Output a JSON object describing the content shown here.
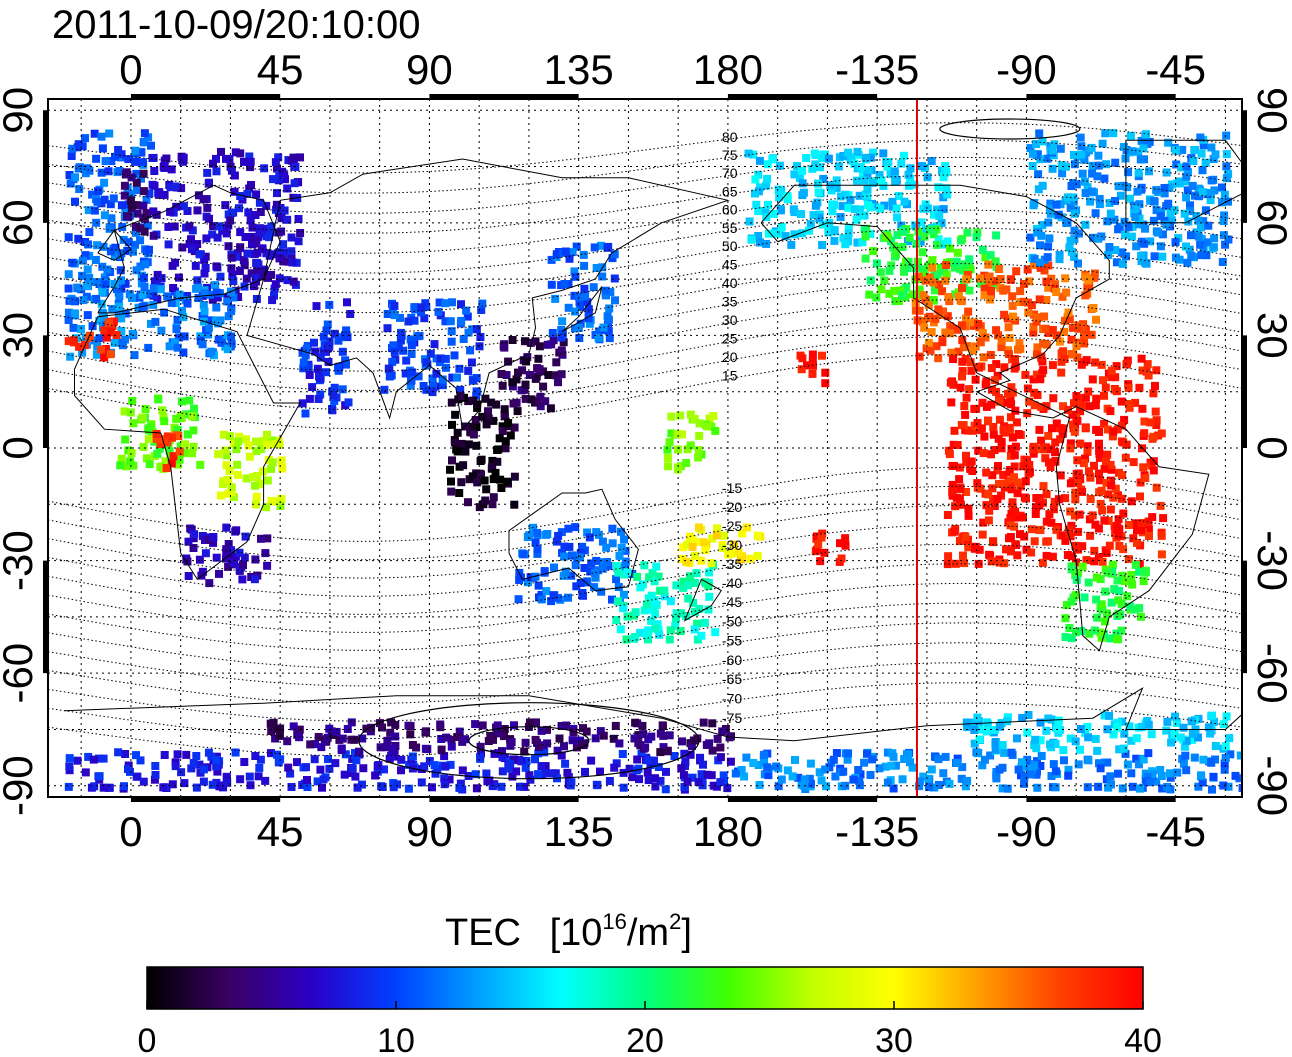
{
  "title": "2011-10-09/20:10:00",
  "x_axis": {
    "ticks": [
      {
        "lon": 0,
        "label": "0"
      },
      {
        "lon": 45,
        "label": "45"
      },
      {
        "lon": 90,
        "label": "90"
      },
      {
        "lon": 135,
        "label": "135"
      },
      {
        "lon": 180,
        "label": "180"
      },
      {
        "lon": 225,
        "label": "-135"
      },
      {
        "lon": 270,
        "label": "-90"
      },
      {
        "lon": 315,
        "label": "-45"
      }
    ],
    "lon_range": [
      -25,
      335
    ]
  },
  "y_axis": {
    "ticks": [
      {
        "lat": 90,
        "label": "90"
      },
      {
        "lat": 60,
        "label": "60"
      },
      {
        "lat": 30,
        "label": "30"
      },
      {
        "lat": 0,
        "label": "0"
      },
      {
        "lat": -30,
        "label": "-30"
      },
      {
        "lat": -60,
        "label": "-60"
      },
      {
        "lat": -90,
        "label": "-90"
      }
    ],
    "lat_range": [
      -93,
      93
    ]
  },
  "contour_labels": [
    "80",
    "75",
    "70",
    "65",
    "60",
    "55",
    "50",
    "45",
    "40",
    "35",
    "30",
    "25",
    "20",
    "15",
    "-15",
    "-20",
    "-25",
    "-30",
    "-35",
    "-40",
    "-45",
    "-50",
    "-55",
    "-60",
    "-65",
    "-70",
    "-75"
  ],
  "terminator_lon": 237,
  "colorbar": {
    "title": "TEC",
    "unit_prefix": "[10",
    "unit_exp": "16",
    "unit_mid": "/m",
    "unit_exp2": "2",
    "unit_suffix": "]",
    "ticks": [
      {
        "value": 0,
        "label": "0"
      },
      {
        "value": 10,
        "label": "10"
      },
      {
        "value": 20,
        "label": "20"
      },
      {
        "value": 30,
        "label": "30"
      },
      {
        "value": 40,
        "label": "40"
      }
    ],
    "range": [
      0,
      40
    ],
    "stops": [
      "#000000",
      "#3a0063",
      "#2a00c8",
      "#0040ff",
      "#00a0ff",
      "#00ffff",
      "#00ff80",
      "#40ff00",
      "#c0ff00",
      "#ffff00",
      "#ffa000",
      "#ff4000",
      "#ff0000"
    ]
  },
  "tec_regions": [
    {
      "lon": [
        -20,
        5
      ],
      "lat": [
        40,
        85
      ],
      "tec": 11
    },
    {
      "lon": 0,
      "lat": [
        55,
        75
      ],
      "tec": 4
    },
    {
      "lon": [
        5,
        50
      ],
      "lat": [
        40,
        80
      ],
      "tec": 7
    },
    {
      "lon": [
        -20,
        30
      ],
      "lat": [
        25,
        45
      ],
      "tec": 12
    },
    {
      "lon": [
        -20,
        -5
      ],
      "lat": [
        25,
        35
      ],
      "tec": 38
    },
    {
      "lon": [
        -5,
        20
      ],
      "lat": [
        -5,
        15
      ],
      "tec": 24
    },
    {
      "lon": [
        5,
        15
      ],
      "lat": [
        -5,
        5
      ],
      "tec": 38
    },
    {
      "lon": [
        25,
        45
      ],
      "lat": [
        -15,
        5
      ],
      "tec": 27
    },
    {
      "lon": [
        15,
        40
      ],
      "lat": [
        -35,
        -20
      ],
      "tec": 6
    },
    {
      "lon": [
        50,
        65
      ],
      "lat": [
        10,
        40
      ],
      "tec": 9
    },
    {
      "lon": [
        75,
        105
      ],
      "lat": [
        15,
        40
      ],
      "tec": 10
    },
    {
      "lon": [
        95,
        115
      ],
      "lat": [
        -15,
        15
      ],
      "tec": 1
    },
    {
      "lon": [
        110,
        130
      ],
      "lat": [
        10,
        30
      ],
      "tec": 3
    },
    {
      "lon": [
        125,
        145
      ],
      "lat": [
        30,
        55
      ],
      "tec": 11
    },
    {
      "lon": [
        115,
        150
      ],
      "lat": [
        -40,
        -20
      ],
      "tec": 11
    },
    {
      "lon": [
        145,
        175
      ],
      "lat": [
        -50,
        -30
      ],
      "tec": 18
    },
    {
      "lon": [
        160,
        175
      ],
      "lat": [
        -5,
        10
      ],
      "tec": 25
    },
    {
      "lon": [
        165,
        190
      ],
      "lat": [
        -30,
        -20
      ],
      "tec": 30
    },
    {
      "lon": [
        185,
        245
      ],
      "lat": [
        55,
        80
      ],
      "tec": 15
    },
    {
      "lon": [
        220,
        260
      ],
      "lat": [
        40,
        60
      ],
      "tec": 22
    },
    {
      "lon": [
        235,
        290
      ],
      "lat": [
        25,
        50
      ],
      "tec": 36
    },
    {
      "lon": [
        245,
        310
      ],
      "lat": [
        -30,
        25
      ],
      "tec": 39
    },
    {
      "lon": [
        280,
        305
      ],
      "lat": [
        -50,
        -30
      ],
      "tec": 22
    },
    {
      "lon": [
        270,
        330
      ],
      "lat": [
        50,
        85
      ],
      "tec": 13
    },
    {
      "lon": [
        200,
        210
      ],
      "lat": [
        18,
        26
      ],
      "tec": 39
    },
    {
      "lon": [
        205,
        215
      ],
      "lat": [
        -30,
        -20
      ],
      "tec": 39
    },
    {
      "lon": [
        -20,
        180
      ],
      "lat": [
        -90,
        -80
      ],
      "tec": 8
    },
    {
      "lon": [
        40,
        180
      ],
      "lat": [
        -80,
        -72
      ],
      "tec": 4
    },
    {
      "lon": [
        180,
        335
      ],
      "lat": [
        -90,
        -80
      ],
      "tec": 12
    },
    {
      "lon": [
        250,
        330
      ],
      "lat": [
        -80,
        -70
      ],
      "tec": 15
    }
  ]
}
